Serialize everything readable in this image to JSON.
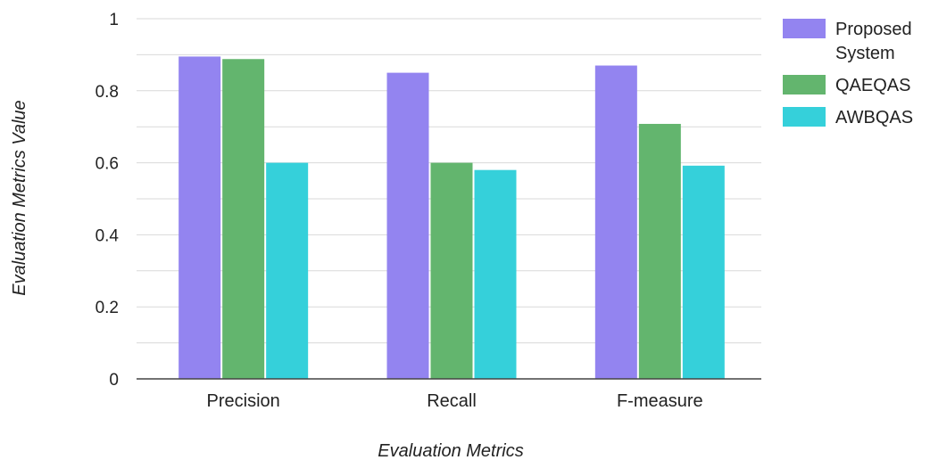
{
  "chart_data": {
    "type": "bar",
    "categories": [
      "Precision",
      "Recall",
      "F-measure"
    ],
    "series": [
      {
        "name": "Proposed System",
        "legend_lines": [
          "Proposed",
          "System"
        ],
        "color": "#9384f0",
        "values": [
          0.895,
          0.85,
          0.87
        ]
      },
      {
        "name": "QAEQAS",
        "legend_lines": [
          "QAEQAS"
        ],
        "color": "#63b56e",
        "values": [
          0.888,
          0.6,
          0.708
        ]
      },
      {
        "name": "AWBQAS",
        "legend_lines": [
          "AWBQAS"
        ],
        "color": "#35d0da",
        "values": [
          0.6,
          0.58,
          0.592
        ]
      }
    ],
    "xlabel": "Evaluation Metrics",
    "ylabel": "Evaluation Metrics Value",
    "ylim": [
      0,
      1
    ],
    "yticks": [
      0,
      0.2,
      0.4,
      0.6,
      0.8,
      1
    ],
    "ytick_labels": [
      "0",
      "0.2",
      "0.4",
      "0.6",
      "0.8",
      "1"
    ],
    "grid": true,
    "legend_position": "right"
  }
}
